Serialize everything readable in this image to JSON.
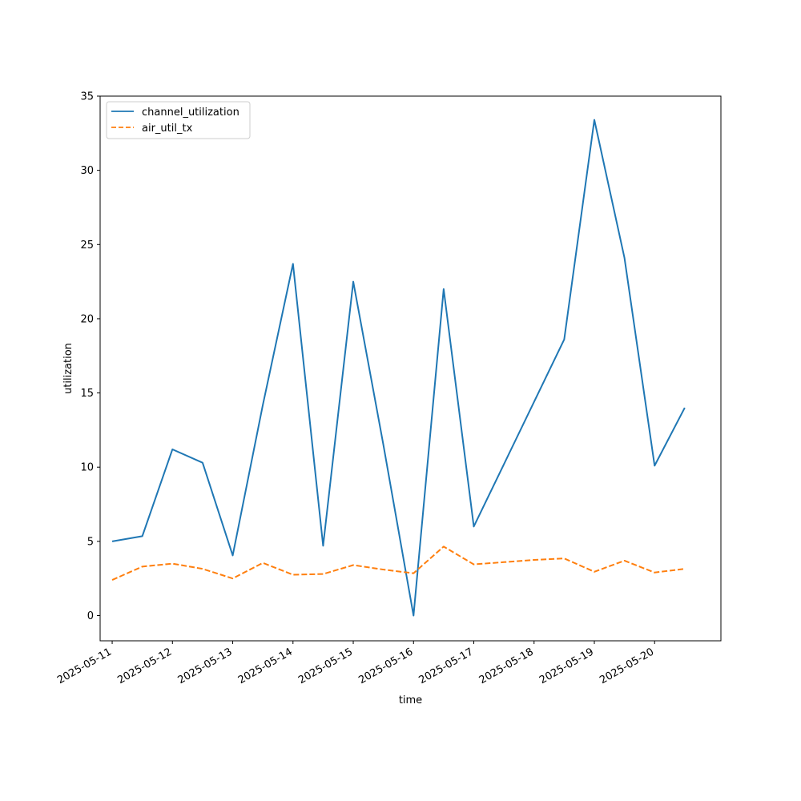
{
  "chart_data": {
    "type": "line",
    "xlabel": "time",
    "ylabel": "utilization",
    "ylim": [
      -1.7,
      35
    ],
    "xlim": [
      "2025-05-10T19:12",
      "2025-05-21T02:24"
    ],
    "x_ticks": [
      "2025-05-11",
      "2025-05-12",
      "2025-05-13",
      "2025-05-14",
      "2025-05-15",
      "2025-05-16",
      "2025-05-17",
      "2025-05-18",
      "2025-05-19",
      "2025-05-20"
    ],
    "y_ticks": [
      0,
      5,
      10,
      15,
      20,
      25,
      30,
      35
    ],
    "grid": false,
    "legend_position": "top-left",
    "x": [
      "2025-05-11T00:00",
      "2025-05-11T12:00",
      "2025-05-12T00:00",
      "2025-05-12T12:00",
      "2025-05-13T00:00",
      "2025-05-13T12:00",
      "2025-05-14T00:00",
      "2025-05-14T12:00",
      "2025-05-15T00:00",
      "2025-05-15T12:00",
      "2025-05-16T00:00",
      "2025-05-16T12:00",
      "2025-05-17T00:00",
      "2025-05-17T12:00",
      "2025-05-18T00:00",
      "2025-05-18T12:00",
      "2025-05-19T00:00",
      "2025-05-19T12:00",
      "2025-05-20T00:00",
      "2025-05-20T12:00"
    ],
    "series": [
      {
        "name": "channel_utilization",
        "color": "#1f77b4",
        "style": "solid",
        "values": [
          5.0,
          5.35,
          11.2,
          10.3,
          4.05,
          14.2,
          23.7,
          4.7,
          22.5,
          11.5,
          0.0,
          22.0,
          6.0,
          10.2,
          14.4,
          18.6,
          33.4,
          24.1,
          10.1,
          14.0
        ]
      },
      {
        "name": "air_util_tx",
        "color": "#ff7f0e",
        "style": "dashed",
        "values": [
          2.4,
          3.3,
          3.5,
          3.15,
          2.5,
          3.55,
          2.75,
          2.8,
          3.4,
          3.1,
          2.85,
          4.65,
          3.45,
          3.6,
          3.75,
          3.85,
          2.95,
          3.7,
          2.9,
          3.15
        ]
      }
    ]
  }
}
